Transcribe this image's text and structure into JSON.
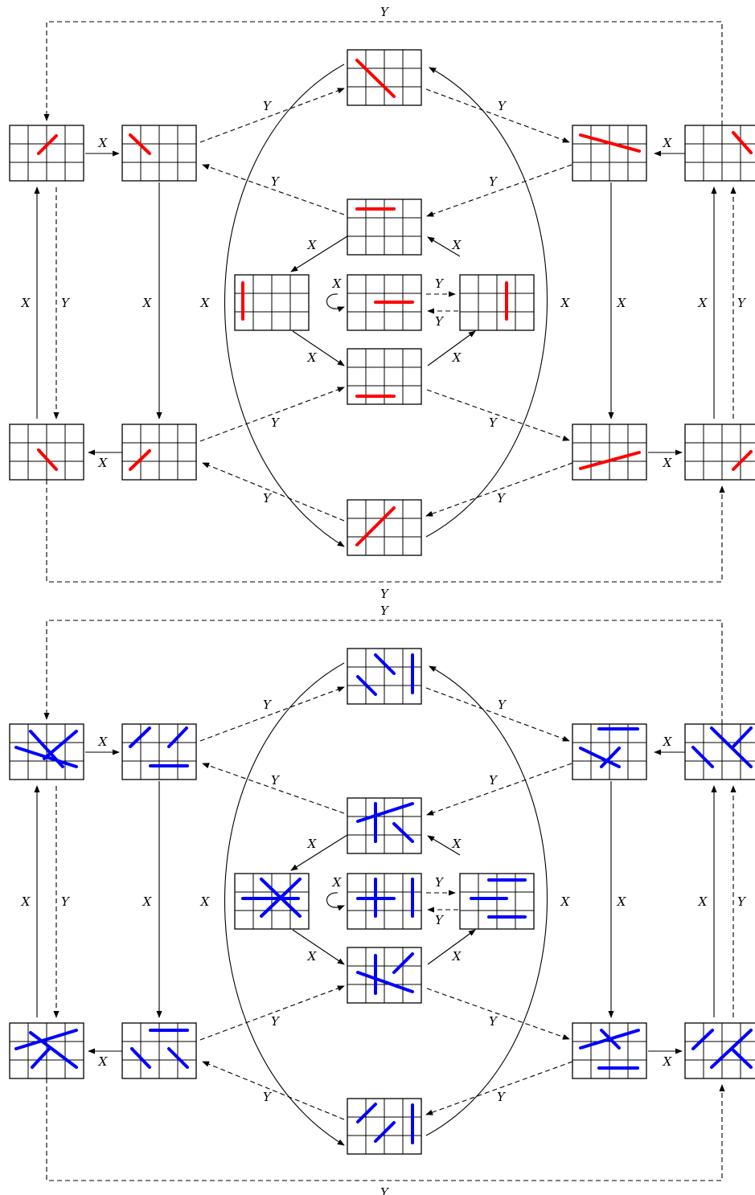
{
  "labels": {
    "x": "X",
    "y": "Y"
  },
  "colors": {
    "grid": "#000000",
    "edge": "#000000",
    "panel_top_lines": "#ff0000",
    "panel_bottom_lines": "#0000ff"
  },
  "panels": [
    {
      "name": "top-diagram",
      "color": "#ff0000"
    },
    {
      "name": "bottom-diagram",
      "color": "#0000ff"
    }
  ]
}
